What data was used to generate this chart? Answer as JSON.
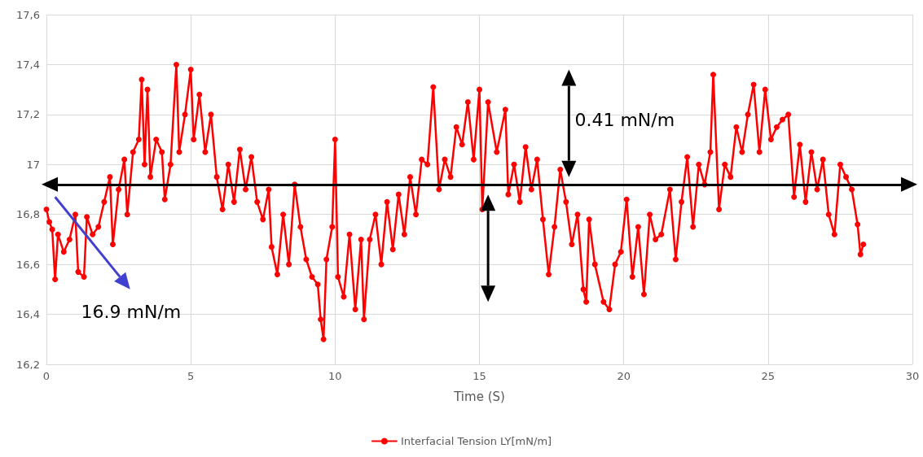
{
  "chart_data": {
    "type": "line",
    "xlabel": "Time (S)",
    "x": [
      0,
      0.1,
      0.2,
      0.3,
      0.4,
      0.6,
      0.8,
      1.0,
      1.1,
      1.3,
      1.4,
      1.6,
      1.8,
      2.0,
      2.2,
      2.3,
      2.5,
      2.7,
      2.8,
      3.0,
      3.2,
      3.3,
      3.4,
      3.5,
      3.6,
      3.8,
      4.0,
      4.1,
      4.3,
      4.5,
      4.6,
      4.8,
      5.0,
      5.1,
      5.3,
      5.5,
      5.7,
      5.9,
      6.1,
      6.3,
      6.5,
      6.7,
      6.9,
      7.1,
      7.3,
      7.5,
      7.7,
      7.8,
      8.0,
      8.2,
      8.4,
      8.6,
      8.8,
      9.0,
      9.2,
      9.4,
      9.5,
      9.6,
      9.7,
      9.9,
      10.0,
      10.1,
      10.3,
      10.5,
      10.7,
      10.9,
      11.0,
      11.2,
      11.4,
      11.6,
      11.8,
      12.0,
      12.2,
      12.4,
      12.6,
      12.8,
      13.0,
      13.2,
      13.4,
      13.6,
      13.8,
      14.0,
      14.2,
      14.4,
      14.6,
      14.8,
      15.0,
      15.1,
      15.3,
      15.6,
      15.9,
      16.0,
      16.2,
      16.4,
      16.6,
      16.8,
      17.0,
      17.2,
      17.4,
      17.6,
      17.8,
      18.0,
      18.2,
      18.4,
      18.6,
      18.7,
      18.8,
      19.0,
      19.3,
      19.5,
      19.7,
      19.9,
      20.1,
      20.3,
      20.5,
      20.7,
      20.9,
      21.1,
      21.3,
      21.6,
      21.8,
      22.0,
      22.2,
      22.4,
      22.6,
      22.8,
      23.0,
      23.1,
      23.3,
      23.5,
      23.7,
      23.9,
      24.1,
      24.3,
      24.5,
      24.7,
      24.9,
      25.1,
      25.3,
      25.5,
      25.7,
      25.9,
      26.1,
      26.3,
      26.5,
      26.7,
      26.9,
      27.1,
      27.3,
      27.5,
      27.7,
      27.9,
      28.1,
      28.2,
      28.3
    ],
    "series": [
      {
        "name": "Interfacial Tension LY[mN/m]",
        "color": "#ff0000",
        "values": [
          16.82,
          16.77,
          16.74,
          16.54,
          16.72,
          16.65,
          16.7,
          16.8,
          16.57,
          16.55,
          16.79,
          16.72,
          16.75,
          16.85,
          16.95,
          16.68,
          16.9,
          17.02,
          16.8,
          17.05,
          17.1,
          17.34,
          17.0,
          17.3,
          16.95,
          17.1,
          17.05,
          16.86,
          17.0,
          17.4,
          17.05,
          17.2,
          17.38,
          17.1,
          17.28,
          17.05,
          17.2,
          16.95,
          16.82,
          17.0,
          16.85,
          17.06,
          16.9,
          17.03,
          16.85,
          16.78,
          16.9,
          16.67,
          16.56,
          16.8,
          16.6,
          16.92,
          16.75,
          16.62,
          16.55,
          16.52,
          16.38,
          16.3,
          16.62,
          16.75,
          17.1,
          16.55,
          16.47,
          16.72,
          16.42,
          16.7,
          16.38,
          16.7,
          16.8,
          16.6,
          16.85,
          16.66,
          16.88,
          16.72,
          16.95,
          16.8,
          17.02,
          17.0,
          17.31,
          16.9,
          17.02,
          16.95,
          17.15,
          17.08,
          17.25,
          17.02,
          17.3,
          16.82,
          17.25,
          17.05,
          17.22,
          16.88,
          17.0,
          16.85,
          17.07,
          16.9,
          17.02,
          16.78,
          16.56,
          16.75,
          16.98,
          16.85,
          16.68,
          16.8,
          16.5,
          16.45,
          16.78,
          16.6,
          16.45,
          16.42,
          16.6,
          16.65,
          16.86,
          16.55,
          16.75,
          16.48,
          16.8,
          16.7,
          16.72,
          16.9,
          16.62,
          16.85,
          17.03,
          16.75,
          17.0,
          16.92,
          17.05,
          17.36,
          16.82,
          17.0,
          16.95,
          17.15,
          17.05,
          17.2,
          17.32,
          17.05,
          17.3,
          17.1,
          17.15,
          17.18,
          17.2,
          16.87,
          17.08,
          16.85,
          17.05,
          16.9,
          17.02,
          16.8,
          16.72,
          17.0,
          16.95,
          16.9,
          16.76,
          16.64,
          16.68
        ]
      }
    ],
    "xlim": [
      0,
      30
    ],
    "xticks": [
      0,
      5,
      10,
      15,
      20,
      25,
      30
    ],
    "ylim": [
      16.2,
      17.6
    ],
    "yticks": [
      {
        "value": 16.2,
        "label": "16,2"
      },
      {
        "value": 16.4,
        "label": "16,4"
      },
      {
        "value": 16.6,
        "label": "16,6"
      },
      {
        "value": 16.8,
        "label": "16,8"
      },
      {
        "value": 17,
        "label": "17"
      },
      {
        "value": 17.2,
        "label": "17,2"
      },
      {
        "value": 17.4,
        "label": "17,4"
      },
      {
        "value": 17.6,
        "label": "17,6"
      }
    ],
    "ref_lines": [
      {
        "axis": "y",
        "value": 16.92,
        "color": "#000000"
      }
    ],
    "annotations": [
      "0.41 mN/m",
      "16.9 mN/m"
    ],
    "grid": true,
    "legend": "bottom",
    "marker": "circle",
    "line_style": "solid"
  }
}
